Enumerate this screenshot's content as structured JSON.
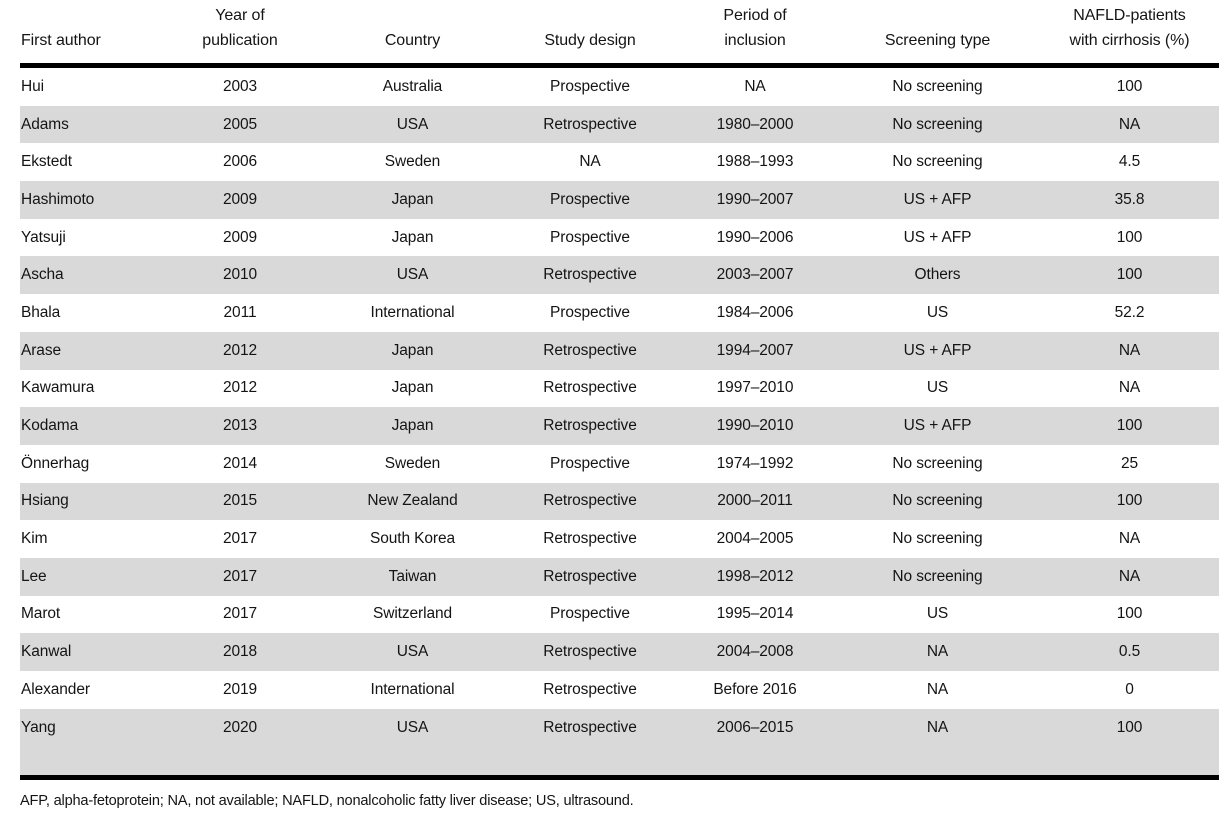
{
  "colors": {
    "row_stripe": "#d9d9d9",
    "rule": "#000000",
    "text": "#141414"
  },
  "table": {
    "columns": [
      "First author",
      "Year of\npublication",
      "Country",
      "Study design",
      "Period of\ninclusion",
      "Screening type",
      "NAFLD-patients\nwith cirrhosis (%)"
    ],
    "rows": [
      [
        "Hui",
        "2003",
        "Australia",
        "Prospective",
        "NA",
        "No screening",
        "100"
      ],
      [
        "Adams",
        "2005",
        "USA",
        "Retrospective",
        "1980–2000",
        "No screening",
        "NA"
      ],
      [
        "Ekstedt",
        "2006",
        "Sweden",
        "NA",
        "1988–1993",
        "No screening",
        "4.5"
      ],
      [
        "Hashimoto",
        "2009",
        "Japan",
        "Prospective",
        "1990–2007",
        "US + AFP",
        "35.8"
      ],
      [
        "Yatsuji",
        "2009",
        "Japan",
        "Prospective",
        "1990–2006",
        "US + AFP",
        "100"
      ],
      [
        "Ascha",
        "2010",
        "USA",
        "Retrospective",
        "2003–2007",
        "Others",
        "100"
      ],
      [
        "Bhala",
        "2011",
        "International",
        "Prospective",
        "1984–2006",
        "US",
        "52.2"
      ],
      [
        "Arase",
        "2012",
        "Japan",
        "Retrospective",
        "1994–2007",
        "US + AFP",
        "NA"
      ],
      [
        "Kawamura",
        "2012",
        "Japan",
        "Retrospective",
        "1997–2010",
        "US",
        "NA"
      ],
      [
        "Kodama",
        "2013",
        "Japan",
        "Retrospective",
        "1990–2010",
        "US + AFP",
        "100"
      ],
      [
        "Önnerhag",
        "2014",
        "Sweden",
        "Prospective",
        "1974–1992",
        "No screening",
        "25"
      ],
      [
        "Hsiang",
        "2015",
        "New Zealand",
        "Retrospective",
        "2000–2011",
        "No screening",
        "100"
      ],
      [
        "Kim",
        "2017",
        "South Korea",
        "Retrospective",
        "2004–2005",
        "No screening",
        "NA"
      ],
      [
        "Lee",
        "2017",
        "Taiwan",
        "Retrospective",
        "1998–2012",
        "No screening",
        "NA"
      ],
      [
        "Marot",
        "2017",
        "Switzerland",
        "Prospective",
        "1995–2014",
        "US",
        "100"
      ],
      [
        "Kanwal",
        "2018",
        "USA",
        "Retrospective",
        "2004–2008",
        "NA",
        "0.5"
      ],
      [
        "Alexander",
        "2019",
        "International",
        "Retrospective",
        "Before 2016",
        "NA",
        "0"
      ],
      [
        "Yang",
        "2020",
        "USA",
        "Retrospective",
        "2006–2015",
        "NA",
        "100"
      ]
    ],
    "footnote": "AFP, alpha-fetoprotein; NA, not available; NAFLD, nonalcoholic fatty liver disease; US, ultrasound."
  }
}
